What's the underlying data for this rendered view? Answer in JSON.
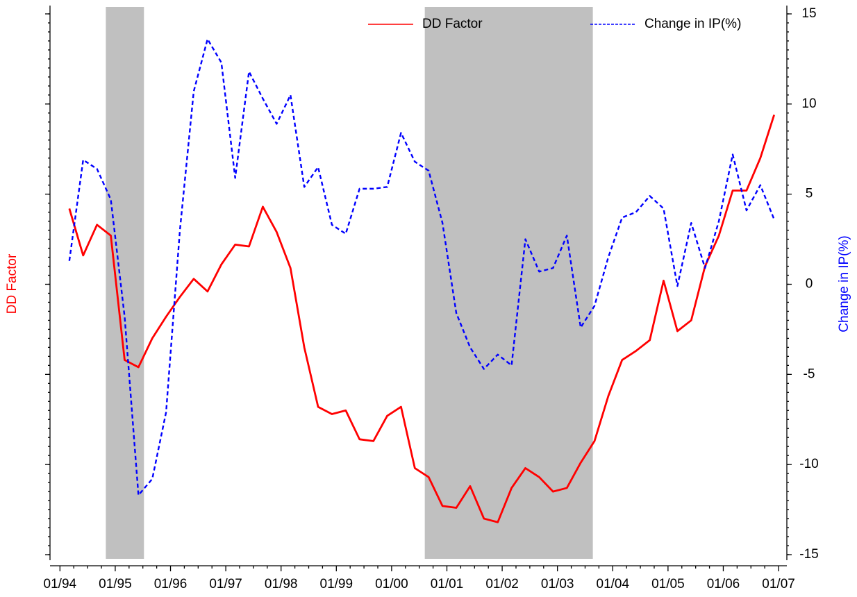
{
  "chart_data": {
    "type": "line",
    "ylabel": "DD Factor",
    "y2label": "Change in IP(%)",
    "x": [
      1994.17,
      1994.42,
      1994.67,
      1994.92,
      1995.17,
      1995.42,
      1995.67,
      1995.92,
      1996.17,
      1996.42,
      1996.67,
      1996.92,
      1997.17,
      1997.42,
      1997.67,
      1997.92,
      1998.17,
      1998.42,
      1998.67,
      1998.92,
      1999.17,
      1999.42,
      1999.67,
      1999.92,
      2000.17,
      2000.42,
      2000.67,
      2000.92,
      2001.17,
      2001.42,
      2001.67,
      2001.92,
      2002.17,
      2002.42,
      2002.67,
      2002.92,
      2003.17,
      2003.42,
      2003.67,
      2003.92,
      2004.17,
      2004.42,
      2004.67,
      2004.92,
      2005.17,
      2005.42,
      2005.67,
      2005.92,
      2006.17,
      2006.42,
      2006.67,
      2006.92
    ],
    "series": [
      {
        "name": "DD Factor",
        "color": "#ff0000",
        "dash": false,
        "axis": "y",
        "values": [
          4.2,
          1.6,
          3.3,
          2.7,
          -4.2,
          -4.6,
          -3.0,
          -1.8,
          -0.7,
          0.3,
          -0.4,
          1.1,
          2.2,
          2.1,
          4.3,
          2.9,
          0.9,
          -3.5,
          -6.8,
          -7.2,
          -7.0,
          -8.6,
          -8.7,
          -7.3,
          -6.8,
          -10.2,
          -10.7,
          -12.3,
          -12.4,
          -11.2,
          -13.0,
          -13.2,
          -11.3,
          -10.2,
          -10.7,
          -11.5,
          -11.3,
          -9.9,
          -8.7,
          -6.2,
          -4.2,
          -3.7,
          -3.1,
          0.2,
          -2.6,
          -2.0,
          1.0,
          2.7,
          5.2,
          5.2,
          7.0,
          9.4
        ]
      },
      {
        "name": "Change in IP(%)",
        "color": "#0000ff",
        "dash": true,
        "axis": "y2",
        "values": [
          1.3,
          6.9,
          6.4,
          4.7,
          -1.8,
          -11.7,
          -10.8,
          -7.1,
          3.0,
          10.7,
          13.6,
          12.3,
          5.9,
          11.8,
          10.3,
          8.9,
          10.5,
          5.4,
          6.5,
          3.3,
          2.8,
          5.3,
          5.3,
          5.4,
          8.4,
          6.8,
          6.3,
          3.4,
          -1.6,
          -3.5,
          -4.7,
          -3.9,
          -4.5,
          2.5,
          0.7,
          0.9,
          2.7,
          -2.4,
          -1.2,
          1.5,
          3.7,
          4.0,
          4.9,
          4.2,
          -0.1,
          3.4,
          0.9,
          3.5,
          7.2,
          4.1,
          5.5,
          3.6
        ]
      }
    ],
    "xlim": [
      1993.82,
      2007.15
    ],
    "xticks": [
      {
        "value": 1994,
        "label": "01/94"
      },
      {
        "value": 1995,
        "label": "01/95"
      },
      {
        "value": 1996,
        "label": "01/96"
      },
      {
        "value": 1997,
        "label": "01/97"
      },
      {
        "value": 1998,
        "label": "01/98"
      },
      {
        "value": 1999,
        "label": "01/99"
      },
      {
        "value": 2000,
        "label": "01/00"
      },
      {
        "value": 2001,
        "label": "01/01"
      },
      {
        "value": 2002,
        "label": "01/02"
      },
      {
        "value": 2003,
        "label": "01/03"
      },
      {
        "value": 2004,
        "label": "01/04"
      },
      {
        "value": 2005,
        "label": "01/05"
      },
      {
        "value": 2006,
        "label": "01/06"
      },
      {
        "value": 2007,
        "label": "01/07"
      }
    ],
    "ylim": [
      -15,
      15
    ],
    "yticks": [
      -15,
      -10,
      -5,
      0,
      5,
      10,
      15
    ],
    "y2lim": [
      -15,
      15
    ],
    "y2ticks": [
      -15,
      -10,
      -5,
      0,
      5,
      10,
      15
    ],
    "shaded": [
      [
        1994.83,
        1995.52
      ],
      [
        2000.6,
        2003.64
      ]
    ],
    "shade_color": "#c0c0c0",
    "legend": "top-right"
  }
}
